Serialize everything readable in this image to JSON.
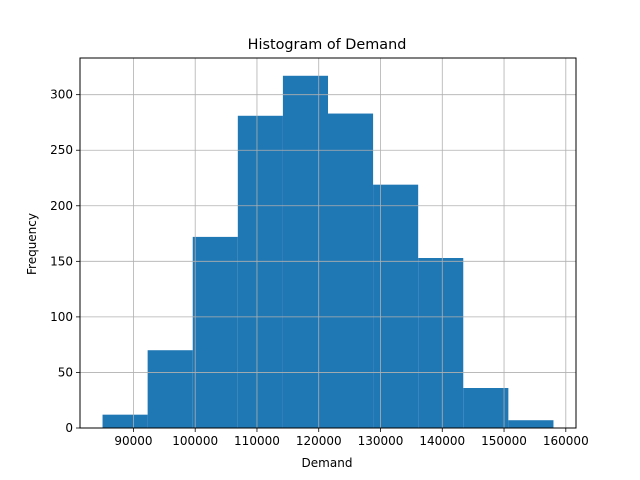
{
  "chart_data": {
    "type": "bar",
    "title": "Histogram of Demand",
    "xlabel": "Demand",
    "ylabel": "Frequency",
    "bin_edges": [
      85000,
      92300,
      99600,
      106900,
      114200,
      121500,
      128800,
      136100,
      143400,
      150700,
      158000
    ],
    "values": [
      12,
      70,
      172,
      281,
      317,
      283,
      219,
      153,
      36,
      7
    ],
    "xlim": [
      81350,
      161650
    ],
    "ylim": [
      0,
      333
    ],
    "xticks": [
      90000,
      100000,
      110000,
      120000,
      130000,
      140000,
      150000,
      160000
    ],
    "xtick_labels": [
      "90000",
      "100000",
      "110000",
      "120000",
      "130000",
      "140000",
      "150000",
      "160000"
    ],
    "yticks": [
      0,
      50,
      100,
      150,
      200,
      250,
      300
    ],
    "ytick_labels": [
      "0",
      "50",
      "100",
      "150",
      "200",
      "250",
      "300"
    ],
    "grid": true,
    "colors": {
      "bar": "#1f77b4",
      "grid": "#b0b0b0",
      "axis": "#000000"
    }
  }
}
